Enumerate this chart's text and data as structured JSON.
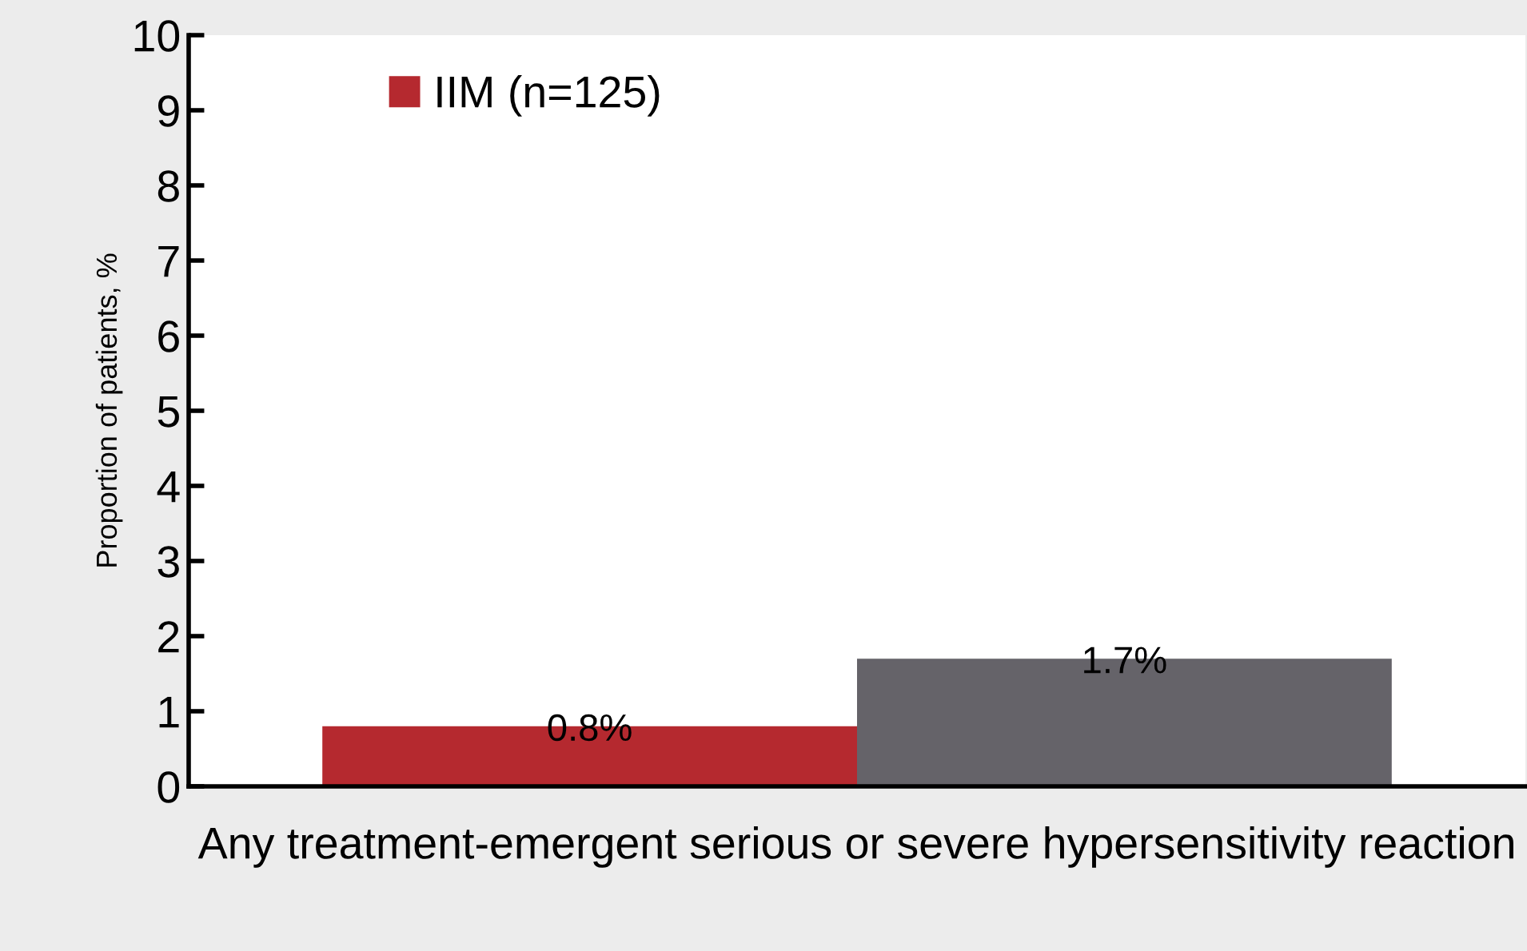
{
  "chart_data": {
    "type": "bar",
    "ylabel": "Proportion of patients, %",
    "categories": [
      "Any treatment-emergent serious or severe hypersensitivity reaction"
    ],
    "series": [
      {
        "name": "IIM (n=125)",
        "color": "#b5292f",
        "values": [
          0.8
        ],
        "value_labels": [
          "0.8%"
        ]
      },
      {
        "color": "#656369",
        "values": [
          1.7
        ],
        "value_labels": [
          "1.7%"
        ]
      }
    ],
    "ylim": [
      0,
      10
    ],
    "yticks": [
      0,
      1,
      2,
      3,
      4,
      5,
      6,
      7,
      8,
      9,
      10
    ],
    "grid": false,
    "legend": "top left"
  }
}
